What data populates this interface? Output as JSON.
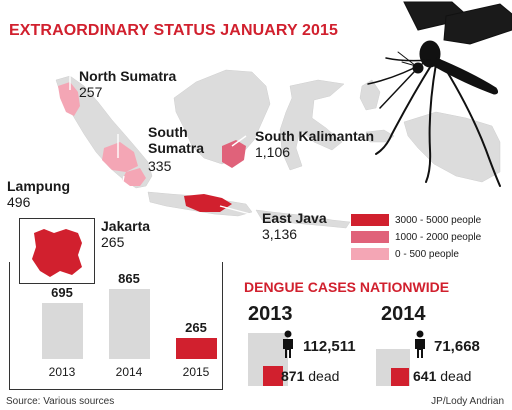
{
  "title": "EXTRAORDINARY STATUS JANUARY 2015",
  "regions": [
    {
      "name": "North Sumatra",
      "value": "257"
    },
    {
      "name": "South Sumatra",
      "value": "335"
    },
    {
      "name": "Lampung",
      "value": "496"
    },
    {
      "name": "Jakarta",
      "value": "265"
    },
    {
      "name": "South Kalimantan",
      "value": "1,106"
    },
    {
      "name": "East Java",
      "value": "3,136"
    }
  ],
  "legend": [
    {
      "label": "3000 - 5000 people",
      "color": "#d1202e"
    },
    {
      "label": "1000 - 2000 people",
      "color": "#e0627a"
    },
    {
      "label": "0 - 500 people",
      "color": "#f4a6b5"
    }
  ],
  "chart_data": {
    "type": "bar",
    "title": "",
    "categories": [
      "2013",
      "2014",
      "2015"
    ],
    "values": [
      695,
      865,
      265
    ],
    "colors": [
      "#d9d9d9",
      "#d9d9d9",
      "#d1202e"
    ]
  },
  "nationwide": {
    "title": "DENGUE CASES NATIONWIDE",
    "dead_label": "dead",
    "years": [
      {
        "year": "2013",
        "cases": "112,511",
        "dead": "871"
      },
      {
        "year": "2014",
        "cases": "71,668",
        "dead": "641"
      }
    ]
  },
  "footer": {
    "source": "Source: Various sources",
    "credit": "JP/Lody Andrian"
  },
  "colors": {
    "accent": "#d1202e",
    "landmass": "#d9d9d9",
    "bar_gray": "#d9d9d9"
  }
}
